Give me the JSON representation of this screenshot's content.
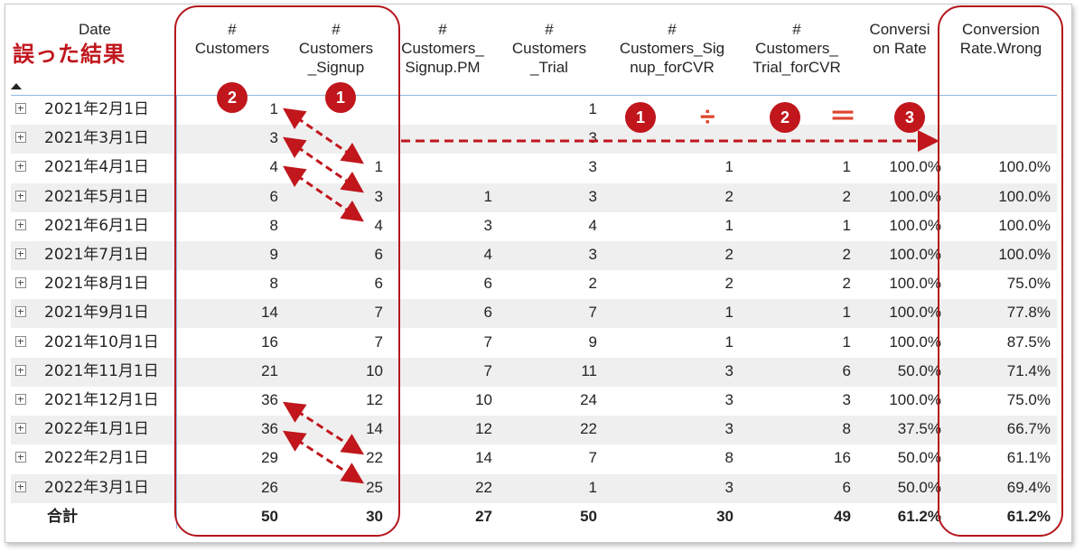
{
  "annotation_title": "誤った結果",
  "columns": [
    {
      "key": "date",
      "label": "Date"
    },
    {
      "key": "customers",
      "label": "#\nCustomers"
    },
    {
      "key": "signup",
      "label": "#\nCustomers\n_Signup"
    },
    {
      "key": "signup_pm",
      "label": "#\nCustomers_\nSignup.PM"
    },
    {
      "key": "trial",
      "label": "#\nCustomers\n_Trial"
    },
    {
      "key": "signup_cvr",
      "label": "#\nCustomers_Sig\nnup_forCVR"
    },
    {
      "key": "trial_cvr",
      "label": "#\nCustomers_\nTrial_forCVR"
    },
    {
      "key": "conv",
      "label": "Conversi\non Rate"
    },
    {
      "key": "conv_wrong",
      "label": "Conversion\nRate.Wrong"
    }
  ],
  "rows": [
    {
      "date": "2021年2月1日",
      "customers": "1",
      "signup": "",
      "signup_pm": "",
      "trial": "1",
      "signup_cvr": "",
      "trial_cvr": "",
      "conv": "",
      "conv_wrong": ""
    },
    {
      "date": "2021年3月1日",
      "customers": "3",
      "signup": "",
      "signup_pm": "",
      "trial": "3",
      "signup_cvr": "",
      "trial_cvr": "",
      "conv": "",
      "conv_wrong": ""
    },
    {
      "date": "2021年4月1日",
      "customers": "4",
      "signup": "1",
      "signup_pm": "",
      "trial": "3",
      "signup_cvr": "1",
      "trial_cvr": "1",
      "conv": "100.0%",
      "conv_wrong": "100.0%"
    },
    {
      "date": "2021年5月1日",
      "customers": "6",
      "signup": "3",
      "signup_pm": "1",
      "trial": "3",
      "signup_cvr": "2",
      "trial_cvr": "2",
      "conv": "100.0%",
      "conv_wrong": "100.0%"
    },
    {
      "date": "2021年6月1日",
      "customers": "8",
      "signup": "4",
      "signup_pm": "3",
      "trial": "4",
      "signup_cvr": "1",
      "trial_cvr": "1",
      "conv": "100.0%",
      "conv_wrong": "100.0%"
    },
    {
      "date": "2021年7月1日",
      "customers": "9",
      "signup": "6",
      "signup_pm": "4",
      "trial": "3",
      "signup_cvr": "2",
      "trial_cvr": "2",
      "conv": "100.0%",
      "conv_wrong": "100.0%"
    },
    {
      "date": "2021年8月1日",
      "customers": "8",
      "signup": "6",
      "signup_pm": "6",
      "trial": "2",
      "signup_cvr": "2",
      "trial_cvr": "2",
      "conv": "100.0%",
      "conv_wrong": "75.0%"
    },
    {
      "date": "2021年9月1日",
      "customers": "14",
      "signup": "7",
      "signup_pm": "6",
      "trial": "7",
      "signup_cvr": "1",
      "trial_cvr": "1",
      "conv": "100.0%",
      "conv_wrong": "77.8%"
    },
    {
      "date": "2021年10月1日",
      "customers": "16",
      "signup": "7",
      "signup_pm": "7",
      "trial": "9",
      "signup_cvr": "1",
      "trial_cvr": "1",
      "conv": "100.0%",
      "conv_wrong": "87.5%"
    },
    {
      "date": "2021年11月1日",
      "customers": "21",
      "signup": "10",
      "signup_pm": "7",
      "trial": "11",
      "signup_cvr": "3",
      "trial_cvr": "6",
      "conv": "50.0%",
      "conv_wrong": "71.4%"
    },
    {
      "date": "2021年12月1日",
      "customers": "36",
      "signup": "12",
      "signup_pm": "10",
      "trial": "24",
      "signup_cvr": "3",
      "trial_cvr": "3",
      "conv": "100.0%",
      "conv_wrong": "75.0%"
    },
    {
      "date": "2022年1月1日",
      "customers": "36",
      "signup": "14",
      "signup_pm": "12",
      "trial": "22",
      "signup_cvr": "3",
      "trial_cvr": "8",
      "conv": "37.5%",
      "conv_wrong": "66.7%"
    },
    {
      "date": "2022年2月1日",
      "customers": "29",
      "signup": "22",
      "signup_pm": "14",
      "trial": "7",
      "signup_cvr": "8",
      "trial_cvr": "16",
      "conv": "50.0%",
      "conv_wrong": "61.1%"
    },
    {
      "date": "2022年3月1日",
      "customers": "26",
      "signup": "25",
      "signup_pm": "22",
      "trial": "1",
      "signup_cvr": "3",
      "trial_cvr": "6",
      "conv": "50.0%",
      "conv_wrong": "69.4%"
    }
  ],
  "total": {
    "date": "合計",
    "customers": "50",
    "signup": "30",
    "signup_pm": "27",
    "trial": "50",
    "signup_cvr": "30",
    "trial_cvr": "49",
    "conv": "61.2%",
    "conv_wrong": "61.2%"
  },
  "badges": {
    "left_1": "2",
    "left_2": "1",
    "right_1": "1",
    "right_2": "2",
    "right_3": "3"
  },
  "operators": {
    "divide": "÷",
    "equals": "＝"
  },
  "colors": {
    "annotation_red": "#c0161c",
    "arrow_red": "#c0161c",
    "operator_orange": "#e0442c",
    "row_shade": "#efefef",
    "grid_blue": "#8fb8e0"
  }
}
